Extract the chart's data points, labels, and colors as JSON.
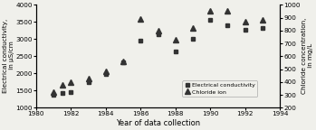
{
  "years_ec": [
    1981,
    1981.5,
    1982,
    1983,
    1984,
    1985,
    1986,
    1987,
    1988,
    1989,
    1990,
    1991,
    1992,
    1993
  ],
  "ec_values": [
    1380,
    1440,
    1450,
    1750,
    1980,
    2320,
    2950,
    3150,
    2650,
    3020,
    3550,
    3400,
    3280,
    3320
  ],
  "years_cl": [
    1981,
    1981.5,
    1982,
    1983,
    1984,
    1985,
    1986,
    1987,
    1988,
    1989,
    1990,
    1991,
    1992,
    1993
  ],
  "cl_values": [
    320,
    380,
    400,
    430,
    480,
    560,
    890,
    800,
    730,
    820,
    950,
    950,
    870,
    880
  ],
  "xlabel": "Year of data collection",
  "ylabel_left": "Electrical conductivity,\n in µS/cm",
  "ylabel_right": "Chloride concentration,\n in mg/L",
  "legend_ec": "Electrical conductivity",
  "legend_cl": "Chloride ion",
  "xlim": [
    1980,
    1994
  ],
  "ylim_left": [
    1000,
    4000
  ],
  "ylim_right": [
    200,
    1000
  ],
  "xticks": [
    1980,
    1982,
    1984,
    1986,
    1988,
    1990,
    1992,
    1994
  ],
  "yticks_left": [
    1000,
    1500,
    2000,
    2500,
    3000,
    3500,
    4000
  ],
  "yticks_right": [
    200,
    300,
    400,
    500,
    600,
    700,
    800,
    900,
    1000
  ],
  "ec_color": "#333333",
  "cl_color": "#333333",
  "bg_color": "#f0f0eb"
}
